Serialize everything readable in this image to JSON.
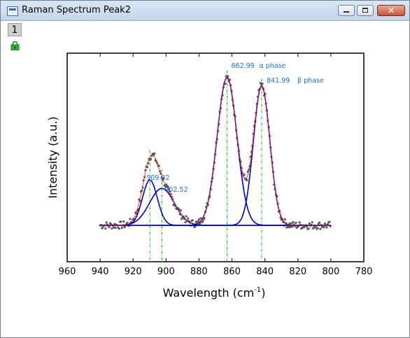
{
  "window": {
    "title": "Raman Spectrum Peak2",
    "layer_label": "1",
    "buttons": {
      "minimize": "minimize-icon",
      "maximize": "maximize-icon",
      "close": "close-icon"
    }
  },
  "chart_data": {
    "type": "line",
    "xlabel": "Wavelength",
    "xlabel_unit": "(cm",
    "xlabel_sup": "-1",
    "xlabel_close": ")",
    "ylabel": "Intensity (a.u.)",
    "xlim": [
      960,
      780
    ],
    "x_reversed": true,
    "xticks": [
      "960",
      "940",
      "920",
      "900",
      "880",
      "860",
      "840",
      "820",
      "800",
      "780"
    ],
    "baseline": 0,
    "peaks": [
      {
        "center": 909.82,
        "amplitude": 0.27,
        "sigma": 4.5
      },
      {
        "center": 902.52,
        "amplitude": 0.22,
        "sigma": 7.5
      },
      {
        "center": 862.99,
        "amplitude": 0.88,
        "sigma": 6.0
      },
      {
        "center": 841.99,
        "amplitude": 0.83,
        "sigma": 5.0
      }
    ],
    "annotations": [
      {
        "text": "909.82",
        "x": 909.82
      },
      {
        "text": "902.52",
        "x": 902.52
      },
      {
        "text": "862.99",
        "x": 862.99
      },
      {
        "text": "α phase",
        "x": 862.99
      },
      {
        "text": "841.99",
        "x": 841.99
      },
      {
        "text": "β phase",
        "x": 841.99
      }
    ],
    "colors": {
      "data": "#5a5a5a",
      "fit": "#e0302a",
      "peaks": "#0000cc",
      "markers": "#00c000"
    }
  }
}
